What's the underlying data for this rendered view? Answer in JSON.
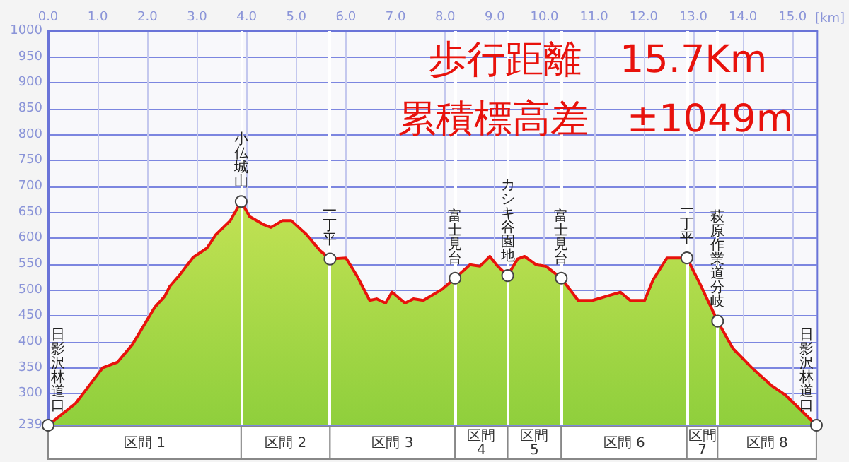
{
  "chart_data": {
    "type": "area",
    "title": "歩行距離　15.7Km",
    "subtitle": "累積標高差　±1049m",
    "xlabel": "[km]",
    "xlim": [
      0,
      15.5
    ],
    "xticks": [
      {
        "value": 0,
        "label": "0.0"
      },
      {
        "value": 1,
        "label": "1.0"
      },
      {
        "value": 2,
        "label": "2.0"
      },
      {
        "value": 3,
        "label": "3.0"
      },
      {
        "value": 4,
        "label": "4.0"
      },
      {
        "value": 5,
        "label": "5.0"
      },
      {
        "value": 6,
        "label": "6.0"
      },
      {
        "value": 7,
        "label": "7.0"
      },
      {
        "value": 8,
        "label": "8.0"
      },
      {
        "value": 9,
        "label": "9.0"
      },
      {
        "value": 10,
        "label": "10.0"
      },
      {
        "value": 11,
        "label": "11.0"
      },
      {
        "value": 12,
        "label": "12.0"
      },
      {
        "value": 13,
        "label": "13.0"
      },
      {
        "value": 14,
        "label": "14.0"
      },
      {
        "value": 15,
        "label": "15.0"
      }
    ],
    "ylim": [
      239,
      1000
    ],
    "yticks": [
      239,
      300,
      350,
      400,
      450,
      500,
      550,
      600,
      650,
      700,
      750,
      800,
      850,
      900,
      950,
      1000
    ],
    "grid": true,
    "series": [
      {
        "color": "#e8120c",
        "x": [
          0,
          0.55,
          0.68,
          1.1,
          1.4,
          1.7,
          2.15,
          2.35,
          2.45,
          2.64,
          2.92,
          3.2,
          3.38,
          3.67,
          3.89,
          4.06,
          4.35,
          4.49,
          4.72,
          4.9,
          5.2,
          5.48,
          5.68,
          6.0,
          6.22,
          6.48,
          6.62,
          6.8,
          6.93,
          7.19,
          7.36,
          7.56,
          7.93,
          8.2,
          8.5,
          8.7,
          8.9,
          9.06,
          9.26,
          9.46,
          9.6,
          9.83,
          10.03,
          10.34,
          10.68,
          10.97,
          11.25,
          11.53,
          11.73,
          12.02,
          12.19,
          12.47,
          12.87,
          13.15,
          13.49,
          13.8,
          14.18,
          14.57,
          14.86,
          15.14,
          15.48
        ],
        "values": [
          239,
          281,
          297,
          350,
          361,
          395,
          467,
          488,
          507,
          528,
          563,
          581,
          607,
          634,
          671,
          642,
          626,
          621,
          634,
          634,
          608,
          576,
          560,
          562,
          528,
          480,
          483,
          475,
          496,
          475,
          483,
          480,
          501,
          523,
          549,
          546,
          565,
          546,
          528,
          560,
          565,
          549,
          546,
          523,
          480,
          480,
          488,
          496,
          480,
          480,
          520,
          562,
          562,
          509,
          440,
          387,
          350,
          316,
          297,
          271,
          239
        ]
      }
    ],
    "annotations": [
      {
        "text": "日影沢林道口",
        "x": 0,
        "y": 239
      },
      {
        "text": "小仏城山",
        "x": 3.89,
        "y": 671
      },
      {
        "text": "一丁平",
        "x": 5.68,
        "y": 560
      },
      {
        "text": "富士見台",
        "x": 8.2,
        "y": 523
      },
      {
        "text": "カシキ谷園地",
        "x": 9.26,
        "y": 528
      },
      {
        "text": "富士見台",
        "x": 10.34,
        "y": 523
      },
      {
        "text": "一丁平",
        "x": 12.87,
        "y": 562
      },
      {
        "text": "萩原作業道分岐",
        "x": 13.49,
        "y": 440
      },
      {
        "text": "日影沢林道口",
        "x": 15.48,
        "y": 239
      },
      "区間 1",
      "区間 2",
      "区間 3",
      "区間 4",
      "区間 5",
      "区間 6",
      "区間 7",
      "区間 8"
    ],
    "ref_lines": [
      {
        "axis": "x",
        "value": 3.89,
        "color": "#ffffff"
      },
      {
        "axis": "x",
        "value": 5.68,
        "color": "#ffffff"
      },
      {
        "axis": "x",
        "value": 8.2,
        "color": "#ffffff"
      },
      {
        "axis": "x",
        "value": 9.26,
        "color": "#ffffff"
      },
      {
        "axis": "x",
        "value": 10.34,
        "color": "#ffffff"
      },
      {
        "axis": "x",
        "value": 12.87,
        "color": "#ffffff"
      },
      {
        "axis": "x",
        "value": 13.49,
        "color": "#ffffff"
      }
    ]
  }
}
